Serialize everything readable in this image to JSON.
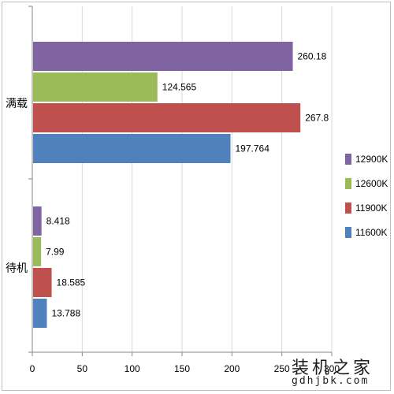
{
  "chart_data": {
    "type": "bar",
    "orientation": "horizontal",
    "categories": [
      "满载",
      "待机"
    ],
    "series": [
      {
        "name": "12900K",
        "color": "#8064a2",
        "values": [
          260.18,
          8.418
        ],
        "labels": [
          "260.18",
          "8.418"
        ]
      },
      {
        "name": "12600K",
        "color": "#9bbb59",
        "values": [
          124.565,
          7.99
        ],
        "labels": [
          "124.565",
          "7.99"
        ]
      },
      {
        "name": "11900K",
        "color": "#c0504d",
        "values": [
          267.8,
          18.585
        ],
        "labels": [
          "267.8",
          "18.585"
        ]
      },
      {
        "name": "11600K",
        "color": "#4f81bd",
        "values": [
          197.764,
          13.788
        ],
        "labels": [
          "197.764",
          "13.788"
        ]
      }
    ],
    "xlim": [
      0,
      300
    ],
    "xticks": [
      "0",
      "50",
      "100",
      "150",
      "200",
      "250",
      "300"
    ],
    "grid": true,
    "legend_position": "right"
  },
  "watermark": {
    "name": "装机之家",
    "domain": "gdhjbk.com"
  }
}
